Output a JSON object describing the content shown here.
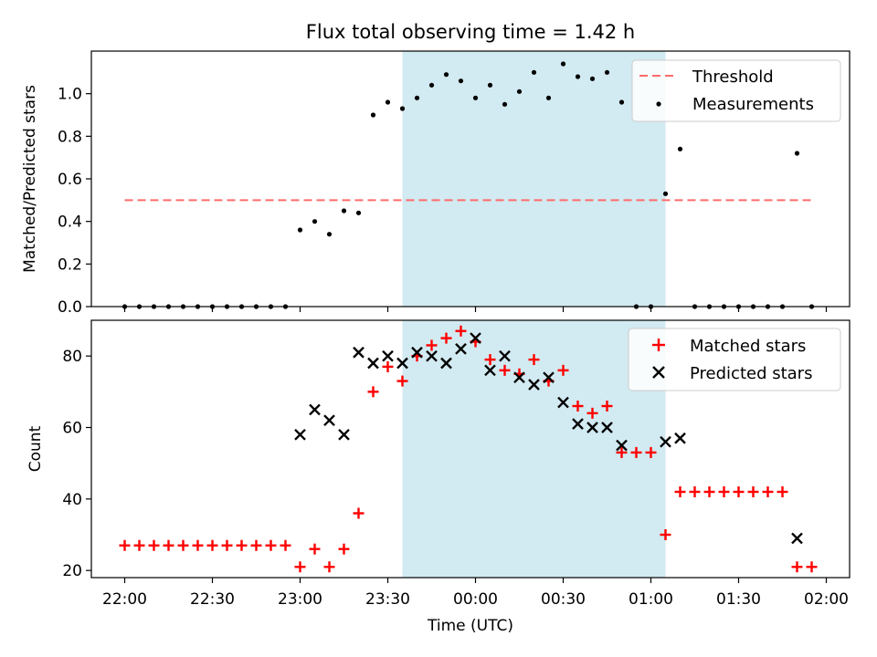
{
  "chart_data": [
    {
      "type": "scatter",
      "title": "Flux total observing time = 1.42 h",
      "ylabel": "Matched/Predicted stars",
      "xlabel": "",
      "ylim": [
        0,
        1.2
      ],
      "y_ticks": [
        0.0,
        0.2,
        0.4,
        0.6,
        0.8,
        1.0
      ],
      "y_tick_labels": [
        "0.0",
        "0.2",
        "0.4",
        "0.6",
        "0.8",
        "1.0"
      ],
      "shaded_interval": [
        "23:35",
        "01:05"
      ],
      "threshold": {
        "value": 0.5,
        "x_range": [
          "22:00",
          "01:55"
        ],
        "color": "#ff6b6b"
      },
      "legend": {
        "placement": "top-right",
        "entries": [
          "Threshold",
          "Measurements"
        ]
      },
      "series": [
        {
          "name": "Measurements",
          "marker": "dot",
          "color": "#000000",
          "points": [
            [
              "22:00",
              0.0
            ],
            [
              "22:05",
              0.0
            ],
            [
              "22:10",
              0.0
            ],
            [
              "22:15",
              0.0
            ],
            [
              "22:20",
              0.0
            ],
            [
              "22:25",
              0.0
            ],
            [
              "22:30",
              0.0
            ],
            [
              "22:35",
              0.0
            ],
            [
              "22:40",
              0.0
            ],
            [
              "22:45",
              0.0
            ],
            [
              "22:50",
              0.0
            ],
            [
              "22:55",
              0.0
            ],
            [
              "23:00",
              0.36
            ],
            [
              "23:05",
              0.4
            ],
            [
              "23:10",
              0.34
            ],
            [
              "23:15",
              0.45
            ],
            [
              "23:20",
              0.44
            ],
            [
              "23:25",
              0.9
            ],
            [
              "23:30",
              0.96
            ],
            [
              "23:35",
              0.93
            ],
            [
              "23:40",
              0.98
            ],
            [
              "23:45",
              1.04
            ],
            [
              "23:50",
              1.09
            ],
            [
              "23:55",
              1.06
            ],
            [
              "00:00",
              0.98
            ],
            [
              "00:05",
              1.04
            ],
            [
              "00:10",
              0.95
            ],
            [
              "00:15",
              1.01
            ],
            [
              "00:20",
              1.1
            ],
            [
              "00:25",
              0.98
            ],
            [
              "00:30",
              1.14
            ],
            [
              "00:35",
              1.08
            ],
            [
              "00:40",
              1.07
            ],
            [
              "00:45",
              1.1
            ],
            [
              "00:50",
              0.96
            ],
            [
              "00:55",
              0.0
            ],
            [
              "01:00",
              0.0
            ],
            [
              "01:05",
              0.53
            ],
            [
              "01:10",
              0.74
            ],
            [
              "01:15",
              0.0
            ],
            [
              "01:20",
              0.0
            ],
            [
              "01:25",
              0.0
            ],
            [
              "01:30",
              0.0
            ],
            [
              "01:35",
              0.0
            ],
            [
              "01:40",
              0.0
            ],
            [
              "01:45",
              0.0
            ],
            [
              "01:50",
              0.72
            ],
            [
              "01:55",
              0.0
            ]
          ]
        }
      ]
    },
    {
      "type": "scatter",
      "title": "",
      "xlabel": "Time (UTC)",
      "ylabel": "Count",
      "ylim": [
        18,
        90
      ],
      "y_ticks": [
        20,
        40,
        60,
        80
      ],
      "y_tick_labels": [
        "20",
        "40",
        "60",
        "80"
      ],
      "x_ticks": [
        "22:00",
        "22:30",
        "23:00",
        "23:30",
        "00:00",
        "00:30",
        "01:00",
        "01:30",
        "02:00"
      ],
      "shaded_interval": [
        "23:35",
        "01:05"
      ],
      "legend": {
        "placement": "top-right",
        "entries": [
          "Matched stars",
          "Predicted stars"
        ]
      },
      "series": [
        {
          "name": "Matched stars",
          "marker": "plus",
          "color": "#ff0000",
          "points": [
            [
              "22:00",
              27
            ],
            [
              "22:05",
              27
            ],
            [
              "22:10",
              27
            ],
            [
              "22:15",
              27
            ],
            [
              "22:20",
              27
            ],
            [
              "22:25",
              27
            ],
            [
              "22:30",
              27
            ],
            [
              "22:35",
              27
            ],
            [
              "22:40",
              27
            ],
            [
              "22:45",
              27
            ],
            [
              "22:50",
              27
            ],
            [
              "22:55",
              27
            ],
            [
              "23:00",
              21
            ],
            [
              "23:05",
              26
            ],
            [
              "23:10",
              21
            ],
            [
              "23:15",
              26
            ],
            [
              "23:20",
              36
            ],
            [
              "23:25",
              70
            ],
            [
              "23:30",
              77
            ],
            [
              "23:35",
              73
            ],
            [
              "23:40",
              80
            ],
            [
              "23:45",
              83
            ],
            [
              "23:50",
              85
            ],
            [
              "23:55",
              87
            ],
            [
              "00:00",
              84
            ],
            [
              "00:05",
              79
            ],
            [
              "00:10",
              76
            ],
            [
              "00:15",
              75
            ],
            [
              "00:20",
              79
            ],
            [
              "00:25",
              73
            ],
            [
              "00:30",
              76
            ],
            [
              "00:35",
              66
            ],
            [
              "00:40",
              64
            ],
            [
              "00:45",
              66
            ],
            [
              "00:50",
              53
            ],
            [
              "00:55",
              53
            ],
            [
              "01:00",
              53
            ],
            [
              "01:05",
              30
            ],
            [
              "01:10",
              42
            ],
            [
              "01:15",
              42
            ],
            [
              "01:20",
              42
            ],
            [
              "01:25",
              42
            ],
            [
              "01:30",
              42
            ],
            [
              "01:35",
              42
            ],
            [
              "01:40",
              42
            ],
            [
              "01:45",
              42
            ],
            [
              "01:50",
              21
            ],
            [
              "01:55",
              21
            ]
          ]
        },
        {
          "name": "Predicted stars",
          "marker": "x",
          "color": "#000000",
          "points": [
            [
              "23:00",
              58
            ],
            [
              "23:05",
              65
            ],
            [
              "23:10",
              62
            ],
            [
              "23:15",
              58
            ],
            [
              "23:20",
              81
            ],
            [
              "23:25",
              78
            ],
            [
              "23:30",
              80
            ],
            [
              "23:35",
              78
            ],
            [
              "23:40",
              81
            ],
            [
              "23:45",
              80
            ],
            [
              "23:50",
              78
            ],
            [
              "23:55",
              82
            ],
            [
              "00:00",
              85
            ],
            [
              "00:05",
              76
            ],
            [
              "00:10",
              80
            ],
            [
              "00:15",
              74
            ],
            [
              "00:20",
              72
            ],
            [
              "00:25",
              74
            ],
            [
              "00:30",
              67
            ],
            [
              "00:35",
              61
            ],
            [
              "00:40",
              60
            ],
            [
              "00:45",
              60
            ],
            [
              "00:50",
              55
            ],
            [
              "01:05",
              56
            ],
            [
              "01:10",
              57
            ],
            [
              "01:50",
              29
            ]
          ]
        }
      ]
    }
  ]
}
